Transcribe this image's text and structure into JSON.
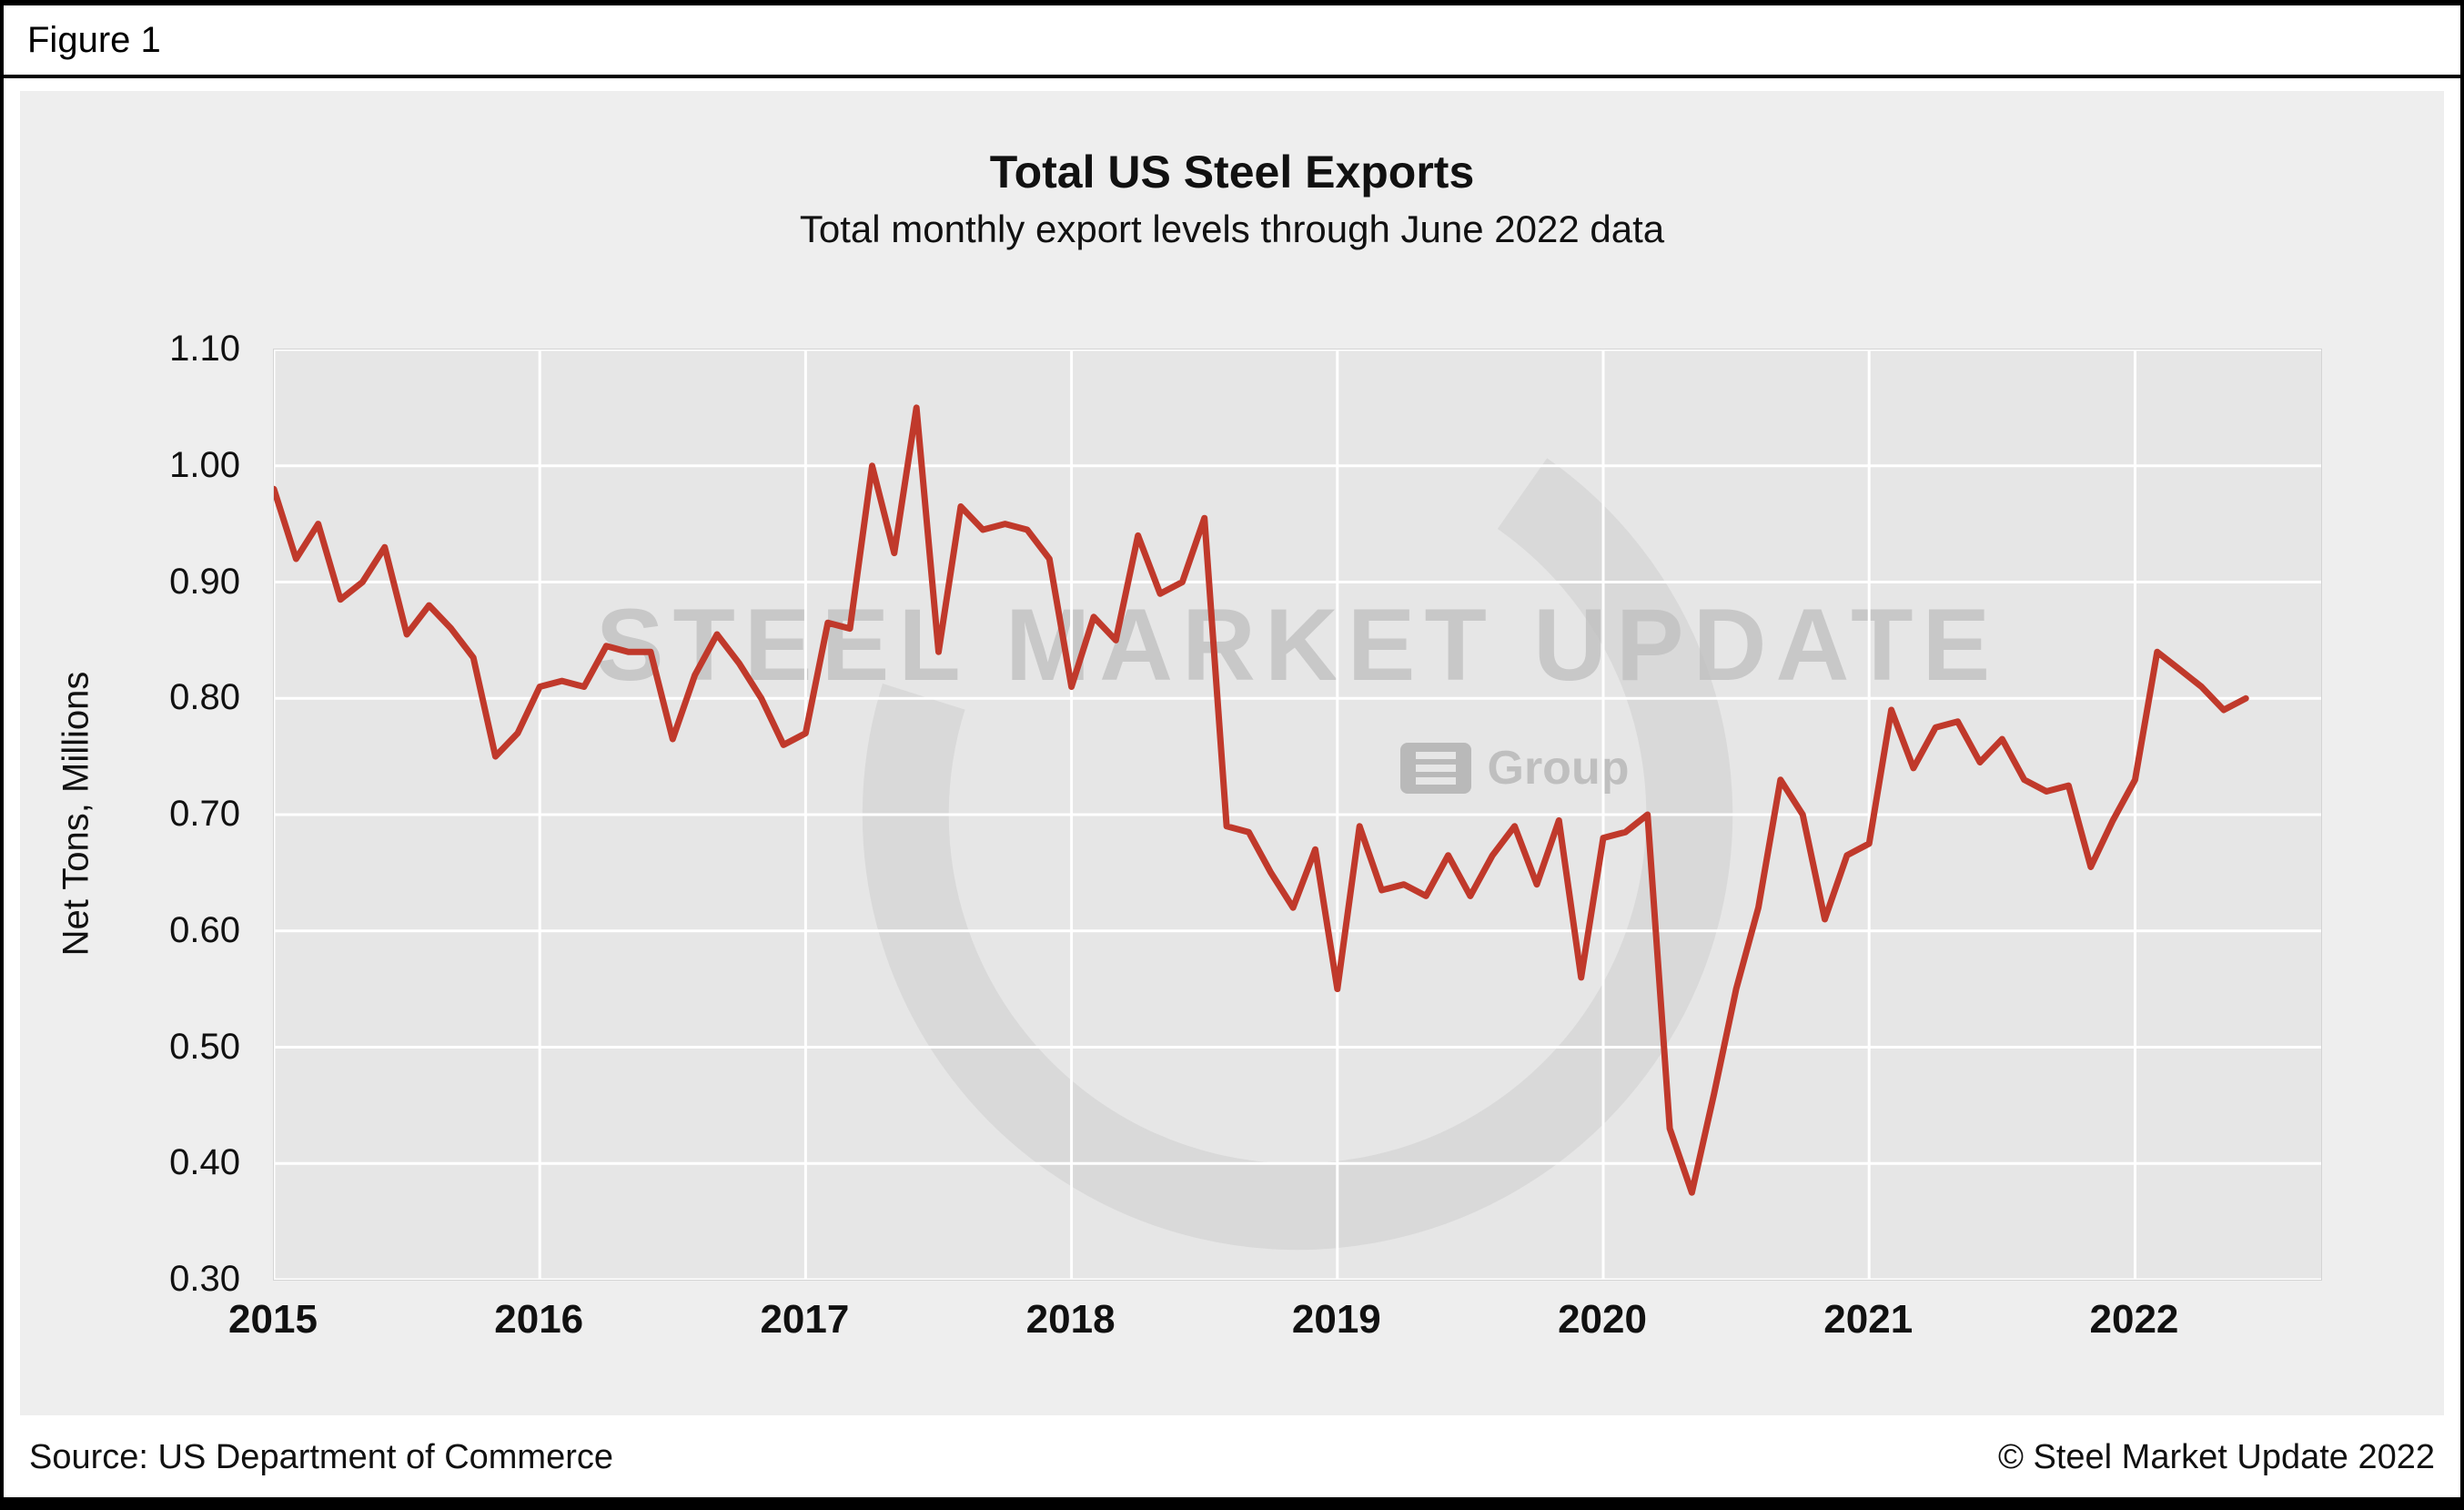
{
  "figure_label": "Figure 1",
  "chart_data": {
    "type": "line",
    "title": "Total US Steel Exports",
    "subtitle": "Total monthly export levels through June 2022 data",
    "ylabel": "Net Tons, Millions",
    "ylim": [
      0.3,
      1.1
    ],
    "ytick_step": 0.1,
    "ytick_labels": [
      "0.30",
      "0.40",
      "0.50",
      "0.60",
      "0.70",
      "0.80",
      "0.90",
      "1.00",
      "1.10"
    ],
    "x_years": [
      2015,
      2016,
      2017,
      2018,
      2019,
      2020,
      2021,
      2022
    ],
    "x_domain": [
      2015,
      2022.7
    ],
    "x_start": "2015-01",
    "x_end": "2022-06",
    "grid": true,
    "legend": "none",
    "line_color": "#c0392b",
    "plot_bg": "#e6e6e6",
    "series": [
      {
        "name": "Total US Steel Exports (Net Tons, Millions, monthly)",
        "values": [
          0.98,
          0.92,
          0.95,
          0.885,
          0.9,
          0.93,
          0.855,
          0.88,
          0.86,
          0.835,
          0.75,
          0.77,
          0.81,
          0.815,
          0.81,
          0.845,
          0.84,
          0.84,
          0.765,
          0.82,
          0.855,
          0.83,
          0.8,
          0.76,
          0.77,
          0.865,
          0.86,
          1.0,
          0.925,
          1.05,
          0.84,
          0.965,
          0.945,
          0.95,
          0.945,
          0.92,
          0.81,
          0.87,
          0.85,
          0.94,
          0.89,
          0.9,
          0.955,
          0.69,
          0.685,
          0.65,
          0.62,
          0.67,
          0.55,
          0.69,
          0.635,
          0.64,
          0.63,
          0.665,
          0.63,
          0.665,
          0.69,
          0.64,
          0.695,
          0.56,
          0.68,
          0.685,
          0.7,
          0.43,
          0.375,
          0.46,
          0.55,
          0.62,
          0.73,
          0.7,
          0.61,
          0.665,
          0.675,
          0.79,
          0.74,
          0.775,
          0.78,
          0.745,
          0.765,
          0.73,
          0.72,
          0.725,
          0.655,
          0.695,
          0.73,
          0.84,
          0.825,
          0.81,
          0.79,
          0.8
        ]
      }
    ]
  },
  "watermark": {
    "line1": "STEEL MARKET UPDATE",
    "line2": "Group"
  },
  "footer": {
    "source": "Source: US Department of Commerce",
    "copyright": "© Steel Market Update 2022"
  }
}
